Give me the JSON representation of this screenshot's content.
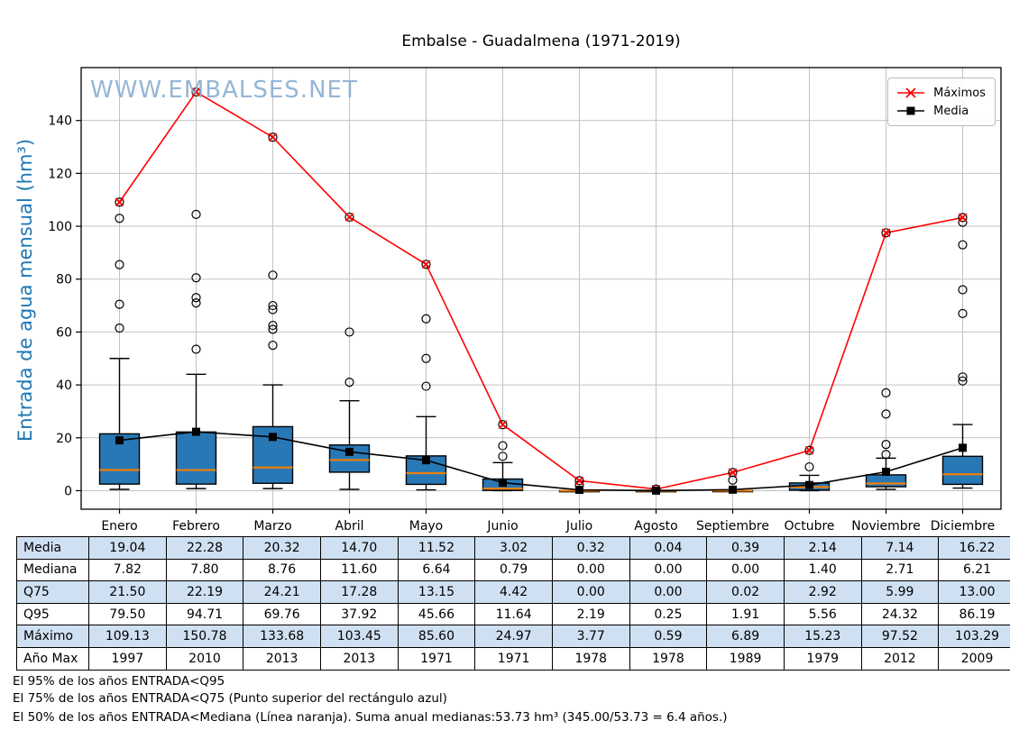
{
  "title": "Embalse - Guadalmena (1971-2019)",
  "watermark": "WWW.EMBALSES.NET",
  "y_axis_label": "Entrada de agua mensual (hm³)",
  "legend": {
    "maximos_label": "Máximos",
    "media_label": "Media"
  },
  "footer": {
    "lines": [
      "El 95% de los años ENTRADA<Q95",
      "El 75% de los años ENTRADA<Q75 (Punto superior del rectángulo azul)",
      "El 50% de los años ENTRADA<Mediana (Línea naranja). Suma anual medianas:53.73 hm³ (345.00/53.73 = 6.4 años.)"
    ]
  },
  "colors": {
    "max_line": "#ff0000",
    "media_line": "#000000",
    "box_fill": "#2878b5",
    "box_edge": "#000000",
    "median_line": "#ee7f0e",
    "grid": "#c2c2c2",
    "y_label_blue": "#1f77b4",
    "watermark_blue": "#8aafd2",
    "table_row_alt": "#cfe0f2"
  },
  "chart_data": {
    "type": "boxplot",
    "title": "Embalse - Guadalmena (1971-2019)",
    "xlabel": "",
    "ylabel": "Entrada de agua mensual (hm³)",
    "grid": true,
    "legend_position": "upper right",
    "categories": [
      "Enero",
      "Febrero",
      "Marzo",
      "Abril",
      "Mayo",
      "Junio",
      "Julio",
      "Agosto",
      "Septiembre",
      "Octubre",
      "Noviembre",
      "Diciembre"
    ],
    "y_ticks": [
      0,
      20,
      40,
      60,
      80,
      100,
      120,
      140
    ],
    "ylim": [
      -7,
      160
    ],
    "series": [
      {
        "name": "Máximos",
        "values": [
          109.13,
          150.78,
          133.68,
          103.45,
          85.6,
          24.97,
          3.77,
          0.59,
          6.89,
          15.23,
          97.52,
          103.29
        ]
      },
      {
        "name": "Media",
        "values": [
          19.04,
          22.28,
          20.32,
          14.7,
          11.52,
          3.02,
          0.32,
          0.04,
          0.39,
          2.14,
          7.14,
          16.22
        ]
      }
    ],
    "boxes": [
      {
        "month": "Enero",
        "q1": 2.5,
        "median": 7.82,
        "q3": 21.5,
        "whisker_low": 0.5,
        "whisker_high": 50.0,
        "outliers": [
          61.5,
          70.5,
          85.5,
          103.0
        ]
      },
      {
        "month": "Febrero",
        "q1": 2.5,
        "median": 7.8,
        "q3": 22.19,
        "whisker_low": 0.8,
        "whisker_high": 44.0,
        "outliers": [
          53.5,
          71.0,
          73.0,
          80.5,
          104.5
        ]
      },
      {
        "month": "Marzo",
        "q1": 2.8,
        "median": 8.76,
        "q3": 24.21,
        "whisker_low": 0.8,
        "whisker_high": 40.0,
        "outliers": [
          55.0,
          61.0,
          62.5,
          68.5,
          70.0,
          81.5
        ]
      },
      {
        "month": "Abril",
        "q1": 7.0,
        "median": 11.6,
        "q3": 17.28,
        "whisker_low": 0.5,
        "whisker_high": 34.0,
        "outliers": [
          41.0,
          60.0
        ]
      },
      {
        "month": "Mayo",
        "q1": 2.4,
        "median": 6.64,
        "q3": 13.15,
        "whisker_low": 0.3,
        "whisker_high": 28.0,
        "outliers": [
          39.5,
          50.0,
          65.0
        ]
      },
      {
        "month": "Junio",
        "q1": 0.1,
        "median": 0.79,
        "q3": 4.42,
        "whisker_low": 0.0,
        "whisker_high": 10.6,
        "outliers": [
          13.0,
          17.0
        ]
      },
      {
        "month": "Julio",
        "q1": 0.0,
        "median": 0.0,
        "q3": 0.0,
        "whisker_low": 0.0,
        "whisker_high": 0.0,
        "outliers": [
          2.2
        ]
      },
      {
        "month": "Agosto",
        "q1": 0.0,
        "median": 0.0,
        "q3": 0.0,
        "whisker_low": 0.0,
        "whisker_high": 0.0,
        "outliers": []
      },
      {
        "month": "Septiembre",
        "q1": 0.0,
        "median": 0.0,
        "q3": 0.02,
        "whisker_low": 0.0,
        "whisker_high": 0.02,
        "outliers": [
          4.0
        ]
      },
      {
        "month": "Octubre",
        "q1": 0.2,
        "median": 1.4,
        "q3": 2.92,
        "whisker_low": 0.0,
        "whisker_high": 5.8,
        "outliers": [
          9.0
        ]
      },
      {
        "month": "Noviembre",
        "q1": 1.5,
        "median": 2.71,
        "q3": 5.99,
        "whisker_low": 0.5,
        "whisker_high": 12.3,
        "outliers": [
          13.7,
          17.5,
          29.0,
          37.0
        ]
      },
      {
        "month": "Diciembre",
        "q1": 2.4,
        "median": 6.21,
        "q3": 13.0,
        "whisker_low": 1.0,
        "whisker_high": 25.0,
        "outliers": [
          41.5,
          43.0,
          67.0,
          76.0,
          93.0,
          101.5
        ]
      }
    ]
  },
  "table": {
    "row_labels": [
      "Media",
      "Mediana",
      "Q75",
      "Q95",
      "Máximo",
      "Año Max"
    ],
    "rows": [
      [
        "19.04",
        "22.28",
        "20.32",
        "14.70",
        "11.52",
        "3.02",
        "0.32",
        "0.04",
        "0.39",
        "2.14",
        "7.14",
        "16.22"
      ],
      [
        "7.82",
        "7.80",
        "8.76",
        "11.60",
        "6.64",
        "0.79",
        "0.00",
        "0.00",
        "0.00",
        "1.40",
        "2.71",
        "6.21"
      ],
      [
        "21.50",
        "22.19",
        "24.21",
        "17.28",
        "13.15",
        "4.42",
        "0.00",
        "0.00",
        "0.02",
        "2.92",
        "5.99",
        "13.00"
      ],
      [
        "79.50",
        "94.71",
        "69.76",
        "37.92",
        "45.66",
        "11.64",
        "2.19",
        "0.25",
        "1.91",
        "5.56",
        "24.32",
        "86.19"
      ],
      [
        "109.13",
        "150.78",
        "133.68",
        "103.45",
        "85.60",
        "24.97",
        "3.77",
        "0.59",
        "6.89",
        "15.23",
        "97.52",
        "103.29"
      ],
      [
        "1997",
        "2010",
        "2013",
        "2013",
        "1971",
        "1971",
        "1978",
        "1978",
        "1989",
        "1979",
        "2012",
        "2009"
      ]
    ]
  }
}
